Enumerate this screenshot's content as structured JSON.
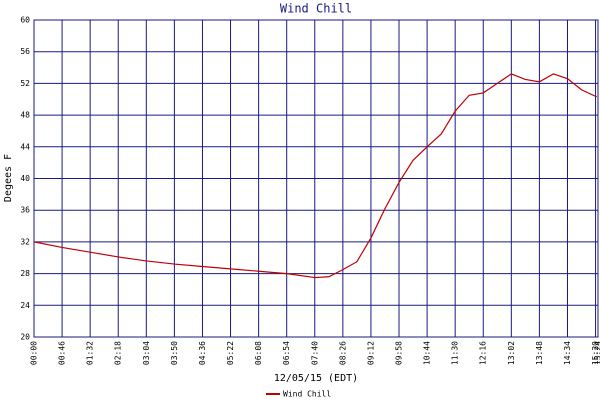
{
  "chart_data": {
    "type": "line",
    "title": "Wind Chill",
    "x_label": "12/05/15 (EDT)",
    "y_label": "Degees F",
    "x": [
      0,
      46,
      92,
      138,
      184,
      230,
      276,
      322,
      368,
      414,
      460,
      483,
      506,
      529,
      552,
      575,
      598,
      621,
      644,
      667,
      690,
      713,
      736,
      759,
      782,
      805,
      828,
      851,
      874,
      897,
      922
    ],
    "series": [
      {
        "name": "Wind Chill",
        "color": "#c00000",
        "values": [
          32,
          31.3,
          30.7,
          30.1,
          29.6,
          29.2,
          28.9,
          28.6,
          28.3,
          28.0,
          27.5,
          27.6,
          28.5,
          29.5,
          32.5,
          36.2,
          39.5,
          42.3,
          44,
          45.6,
          48.5,
          50.5,
          50.8,
          52,
          53.2,
          52.5,
          52.2,
          53.2,
          52.6,
          51.2,
          50.3
        ]
      }
    ],
    "xlim": [
      0,
      924
    ],
    "xticks": [
      {
        "value": 0,
        "label": "00:00"
      },
      {
        "value": 46,
        "label": "00:46"
      },
      {
        "value": 92,
        "label": "01:32"
      },
      {
        "value": 138,
        "label": "02:18"
      },
      {
        "value": 184,
        "label": "03:04"
      },
      {
        "value": 230,
        "label": "03:50"
      },
      {
        "value": 276,
        "label": "04:36"
      },
      {
        "value": 322,
        "label": "05:22"
      },
      {
        "value": 368,
        "label": "06:08"
      },
      {
        "value": 414,
        "label": "06:54"
      },
      {
        "value": 460,
        "label": "07:40"
      },
      {
        "value": 506,
        "label": "08:26"
      },
      {
        "value": 552,
        "label": "09:12"
      },
      {
        "value": 598,
        "label": "09:58"
      },
      {
        "value": 644,
        "label": "10:44"
      },
      {
        "value": 690,
        "label": "11:30"
      },
      {
        "value": 736,
        "label": "12:16"
      },
      {
        "value": 782,
        "label": "13:02"
      },
      {
        "value": 828,
        "label": "13:48"
      },
      {
        "value": 874,
        "label": "14:34"
      },
      {
        "value": 920,
        "label": "15:20"
      },
      {
        "value": 924,
        "label": "15:24"
      }
    ],
    "ylim": [
      20,
      60
    ],
    "yticks": [
      20,
      24,
      28,
      32,
      36,
      40,
      44,
      48,
      52,
      56,
      60
    ],
    "grid": true,
    "grid_color": "#1a1a80"
  }
}
